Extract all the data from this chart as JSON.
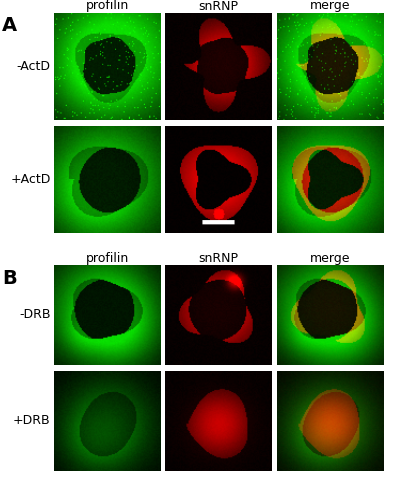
{
  "figure_label_A": "A",
  "figure_label_B": "B",
  "col_labels": [
    "profilin",
    "snRNP",
    "merge"
  ],
  "row_labels_A": [
    "-ActD",
    "+ActD"
  ],
  "row_labels_B": [
    "-DRB",
    "+DRB"
  ],
  "background_color": "#ffffff",
  "col_label_fontsize": 9,
  "row_label_fontsize": 9,
  "fig_label_fontsize": 14
}
